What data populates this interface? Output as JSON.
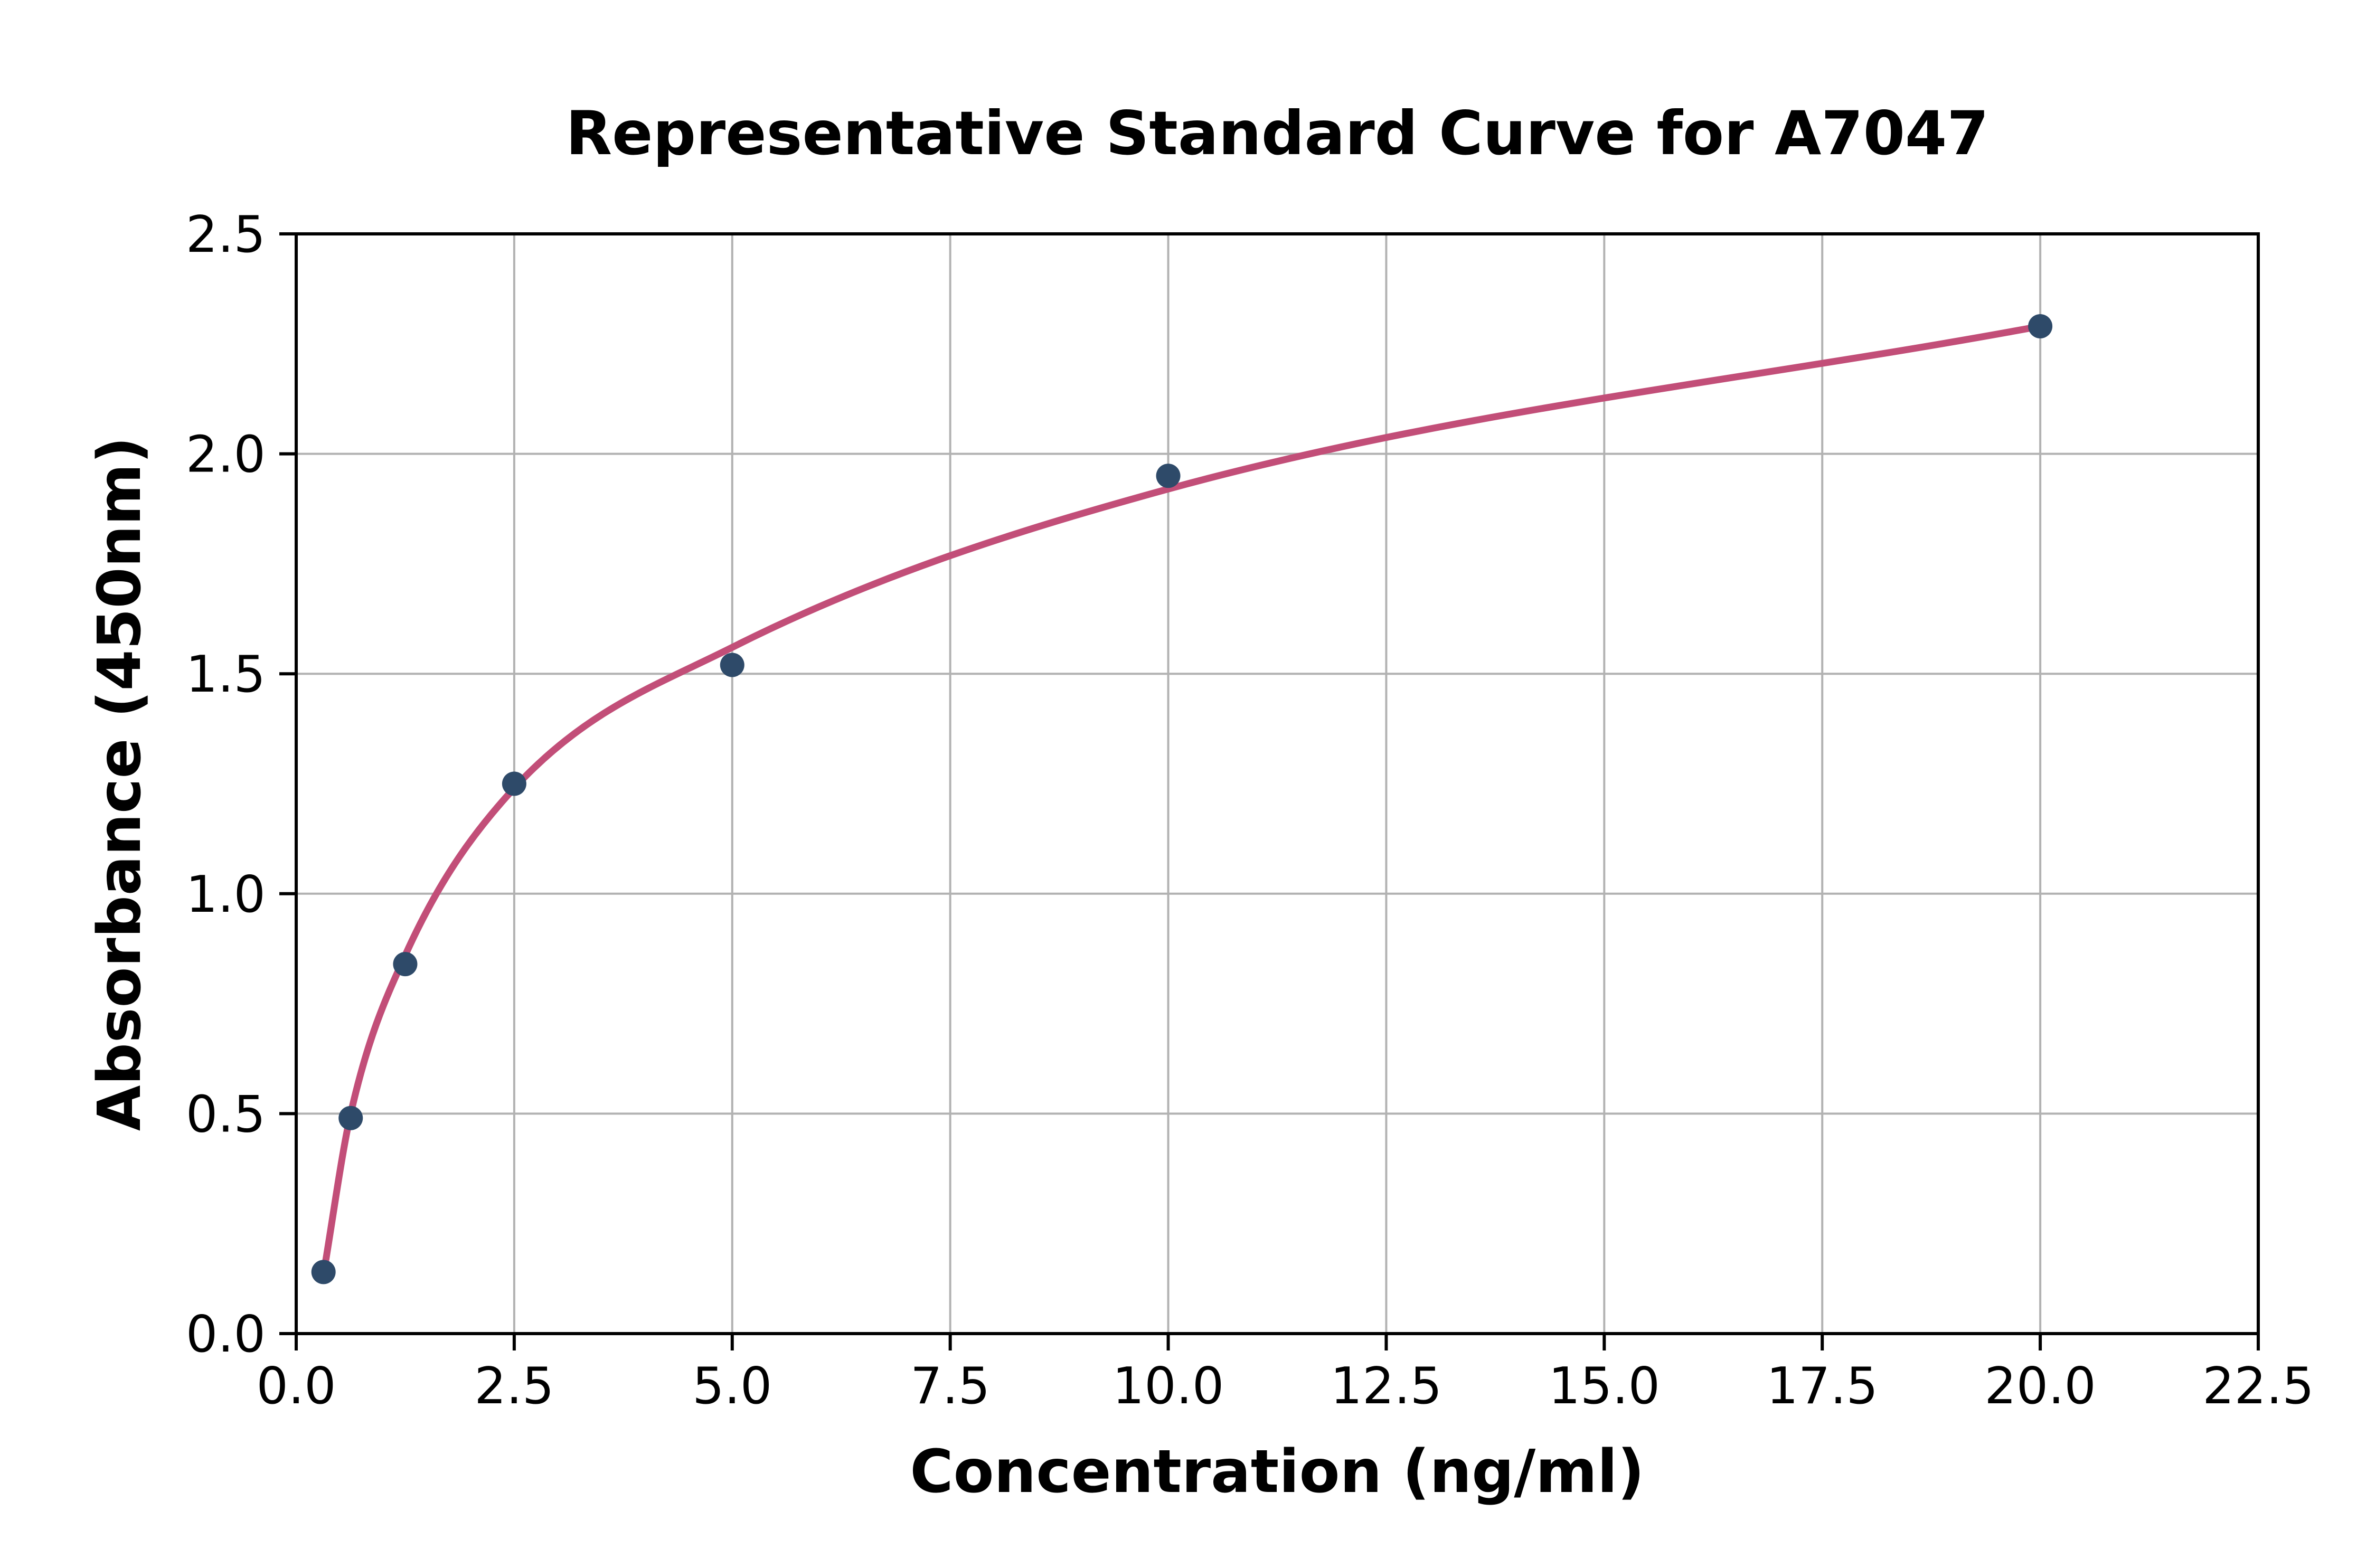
{
  "figure": {
    "title": "Representative Standard Curve for A7047"
  },
  "chart_data": {
    "type": "scatter",
    "title": "Representative Standard Curve for A7047",
    "xlabel": "Concentration (ng/ml)",
    "ylabel": "Absorbance (450nm)",
    "xlim": [
      0,
      22.5
    ],
    "ylim": [
      0,
      2.5
    ],
    "x_ticks": [
      0,
      2.5,
      5,
      7.5,
      10,
      12.5,
      15,
      17.5,
      20,
      22.5
    ],
    "x_tick_labels": [
      "0.0",
      "2.5",
      "5.0",
      "7.5",
      "10.0",
      "12.5",
      "15.0",
      "17.5",
      "20.0",
      "22.5"
    ],
    "y_ticks": [
      0,
      0.5,
      1,
      1.5,
      2,
      2.5
    ],
    "y_tick_labels": [
      "0.0",
      "0.5",
      "1.0",
      "1.5",
      "2.0",
      "2.5"
    ],
    "grid": true,
    "legend_position": "none",
    "series": [
      {
        "name": "standard-points",
        "type": "scatter",
        "x": [
          0.313,
          0.625,
          1.25,
          2.5,
          5,
          10,
          20
        ],
        "y": [
          0.14,
          0.49,
          0.84,
          1.25,
          1.52,
          1.95,
          2.29
        ]
      },
      {
        "name": "fitted-curve",
        "type": "line",
        "x": [
          0.313,
          0.625,
          1.25,
          2.5,
          5,
          10,
          20
        ],
        "y": [
          0.135,
          0.5,
          0.86,
          1.24,
          1.56,
          1.92,
          2.29
        ]
      }
    ],
    "colors": {
      "point": "#2e4a69",
      "curve": "#c24e78",
      "grid": "#b2b2b2",
      "axis": "#000000",
      "background": "#ffffff"
    }
  }
}
